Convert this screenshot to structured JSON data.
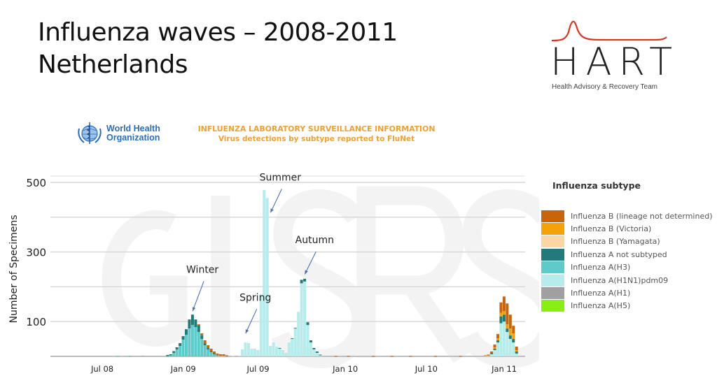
{
  "slide": {
    "title_line1": "Influenza waves – 2008-2011",
    "title_line2": "Netherlands"
  },
  "hart_logo": {
    "word": "HART",
    "tagline": "Health Advisory & Recovery Team",
    "curve_color": "#d9351f"
  },
  "who_logo": {
    "line1": "World Health",
    "line2": "Organization"
  },
  "flunet_header": {
    "title": "INFLUENZA LABORATORY SURVEILLANCE INFORMATION",
    "subtitle": "Virus detections by subtype reported to FluNet"
  },
  "watermark": "GISRS",
  "chart_data": {
    "type": "bar",
    "stacked": true,
    "title": "Virus detections by subtype reported to FluNet",
    "xlabel": "",
    "ylabel": "Number of Specimens",
    "ylim": [
      0,
      500
    ],
    "yticks": [
      100,
      300,
      500
    ],
    "gridlines": [
      0,
      100,
      200,
      300,
      400,
      500
    ],
    "grid": true,
    "x_unit": "week index (0 = mid-March 2008)",
    "x_tick_labels": [
      {
        "label": "Jul 08",
        "week": 17
      },
      {
        "label": "Jan 09",
        "week": 43
      },
      {
        "label": "Jul 09",
        "week": 67
      },
      {
        "label": "Jan 10",
        "week": 95
      },
      {
        "label": "Jul 10",
        "week": 121
      },
      {
        "label": "Jan 11",
        "week": 146
      }
    ],
    "legend_title": "Influenza subtype",
    "legend_position": "right",
    "series_order": [
      "a_h5",
      "a_h1",
      "a_h1n1pdm09",
      "a_h3",
      "a_not_subtyped",
      "b_yamagata",
      "b_victoria",
      "b_lineage_nd"
    ],
    "series": [
      {
        "key": "b_lineage_nd",
        "name": "Influenza B (lineage not determined)",
        "color": "#c8650a"
      },
      {
        "key": "b_victoria",
        "name": "Influenza B (Victoria)",
        "color": "#f5a20a"
      },
      {
        "key": "b_yamagata",
        "name": "Influenza B (Yamagata)",
        "color": "#fbd6a4"
      },
      {
        "key": "a_not_subtyped",
        "name": "Influenza A not subtyped",
        "color": "#237a7a"
      },
      {
        "key": "a_h3",
        "name": "Influenza A(H3)",
        "color": "#5ecbcb"
      },
      {
        "key": "a_h1n1pdm09",
        "name": "Influenza A(H1N1)pdm09",
        "color": "#b6ecec"
      },
      {
        "key": "a_h1",
        "name": "Influenza A(H1)",
        "color": "#a0a0a0"
      },
      {
        "key": "a_h5",
        "name": "Influenza A(H5)",
        "color": "#88ee14"
      }
    ],
    "weeks": [
      {
        "w": 22,
        "a_h3": 1
      },
      {
        "w": 26,
        "a_h3": 1
      },
      {
        "w": 30,
        "a_h3": 2
      },
      {
        "w": 38,
        "a_not_subtyped": 3,
        "a_h3": 1
      },
      {
        "w": 39,
        "a_h3": 3,
        "a_not_subtyped": 3
      },
      {
        "w": 40,
        "a_h3": 10,
        "a_not_subtyped": 5
      },
      {
        "w": 41,
        "a_h3": 20,
        "a_not_subtyped": 6
      },
      {
        "w": 42,
        "a_h3": 30,
        "a_not_subtyped": 8
      },
      {
        "w": 43,
        "a_h3": 48,
        "a_not_subtyped": 10
      },
      {
        "w": 44,
        "a_h3": 62,
        "a_not_subtyped": 16
      },
      {
        "w": 45,
        "a_h3": 80,
        "a_not_subtyped": 26
      },
      {
        "w": 46,
        "a_h3": 90,
        "a_not_subtyped": 30
      },
      {
        "w": 47,
        "a_h3": 84,
        "a_not_subtyped": 22
      },
      {
        "w": 48,
        "a_h3": 70,
        "a_not_subtyped": 20,
        "b_lineage_nd": 2
      },
      {
        "w": 49,
        "a_h3": 50,
        "a_not_subtyped": 10,
        "b_lineage_nd": 6
      },
      {
        "w": 50,
        "a_h3": 32,
        "a_not_subtyped": 6,
        "b_lineage_nd": 8
      },
      {
        "w": 51,
        "a_h3": 20,
        "a_not_subtyped": 4,
        "b_lineage_nd": 8
      },
      {
        "w": 52,
        "a_h3": 12,
        "a_not_subtyped": 2,
        "b_lineage_nd": 8
      },
      {
        "w": 53,
        "a_h3": 6,
        "a_not_subtyped": 2,
        "b_lineage_nd": 6
      },
      {
        "w": 54,
        "a_h3": 3,
        "b_lineage_nd": 5
      },
      {
        "w": 55,
        "a_h3": 2,
        "b_lineage_nd": 4
      },
      {
        "w": 56,
        "a_h3": 2,
        "b_lineage_nd": 4
      },
      {
        "w": 57,
        "b_lineage_nd": 3
      },
      {
        "w": 59,
        "a_h1n1pdm09": 2
      },
      {
        "w": 61,
        "a_h1n1pdm09": 2
      },
      {
        "w": 62,
        "a_h1n1pdm09": 20
      },
      {
        "w": 63,
        "a_h1n1pdm09": 40
      },
      {
        "w": 64,
        "a_h1n1pdm09": 38
      },
      {
        "w": 65,
        "a_h1n1pdm09": 22
      },
      {
        "w": 66,
        "a_h1n1pdm09": 22
      },
      {
        "w": 67,
        "a_h1n1pdm09": 18
      },
      {
        "w": 68,
        "a_h1n1pdm09": 178
      },
      {
        "w": 69,
        "a_h1n1pdm09": 478
      },
      {
        "w": 70,
        "a_h1n1pdm09": 455
      },
      {
        "w": 71,
        "a_h1n1pdm09": 30
      },
      {
        "w": 72,
        "a_h1n1pdm09": 40
      },
      {
        "w": 73,
        "a_h1n1pdm09": 28
      },
      {
        "w": 74,
        "a_h1n1pdm09": 22,
        "a_not_subtyped": 2
      },
      {
        "w": 75,
        "a_h1n1pdm09": 18
      },
      {
        "w": 76,
        "a_h1n1pdm09": 10
      },
      {
        "w": 77,
        "a_h1n1pdm09": 40
      },
      {
        "w": 78,
        "a_h1n1pdm09": 50,
        "a_not_subtyped": 2
      },
      {
        "w": 79,
        "a_h1n1pdm09": 80,
        "a_not_subtyped": 2
      },
      {
        "w": 80,
        "a_h1n1pdm09": 128
      },
      {
        "w": 81,
        "a_h1n1pdm09": 210,
        "a_not_subtyped": 10
      },
      {
        "w": 82,
        "a_h1n1pdm09": 215,
        "a_not_subtyped": 8
      },
      {
        "w": 83,
        "a_h1n1pdm09": 90,
        "a_not_subtyped": 8
      },
      {
        "w": 84,
        "a_h1n1pdm09": 40,
        "a_not_subtyped": 6
      },
      {
        "w": 85,
        "a_h1n1pdm09": 20,
        "a_not_subtyped": 4
      },
      {
        "w": 86,
        "a_h1n1pdm09": 10,
        "a_not_subtyped": 4
      },
      {
        "w": 87,
        "a_h1n1pdm09": 3,
        "a_not_subtyped": 2
      },
      {
        "w": 92,
        "b_lineage_nd": 1
      },
      {
        "w": 96,
        "b_lineage_nd": 1
      },
      {
        "w": 104,
        "b_lineage_nd": 1
      },
      {
        "w": 110,
        "b_lineage_nd": 1
      },
      {
        "w": 116,
        "b_lineage_nd": 1
      },
      {
        "w": 124,
        "b_lineage_nd": 1
      },
      {
        "w": 132,
        "b_lineage_nd": 1
      },
      {
        "w": 140,
        "a_h1n1pdm09": 1,
        "b_lineage_nd": 2
      },
      {
        "w": 141,
        "a_h1n1pdm09": 2,
        "b_lineage_nd": 3
      },
      {
        "w": 142,
        "a_h1n1pdm09": 6,
        "a_not_subtyped": 2,
        "b_lineage_nd": 6
      },
      {
        "w": 143,
        "a_h1n1pdm09": 18,
        "a_not_subtyped": 4,
        "b_victoria": 4,
        "b_lineage_nd": 8
      },
      {
        "w": 144,
        "a_h1n1pdm09": 40,
        "a_not_subtyped": 6,
        "b_victoria": 6,
        "b_lineage_nd": 12
      },
      {
        "w": 145,
        "a_h1n1pdm09": 95,
        "a_not_subtyped": 20,
        "b_victoria": 10,
        "b_lineage_nd": 30
      },
      {
        "w": 146,
        "a_h1n1pdm09": 100,
        "a_not_subtyped": 20,
        "b_victoria": 10,
        "b_lineage_nd": 42
      },
      {
        "w": 147,
        "a_h1n1pdm09": 70,
        "a_not_subtyped": 10,
        "b_victoria": 12,
        "b_lineage_nd": 60
      },
      {
        "w": 148,
        "a_h1n1pdm09": 50,
        "a_not_subtyped": 10,
        "b_victoria": 20,
        "b_lineage_nd": 40
      },
      {
        "w": 149,
        "a_h1n1pdm09": 40,
        "a_not_subtyped": 10,
        "b_victoria": 16,
        "b_lineage_nd": 22
      },
      {
        "w": 150,
        "a_h1n1pdm09": 8,
        "a_not_subtyped": 6,
        "b_victoria": 4,
        "b_lineage_nd": 10
      }
    ],
    "annotations": [
      {
        "label": "Winter",
        "week": 46,
        "value": 122,
        "text_value": 240
      },
      {
        "label": "Spring",
        "week": 63,
        "value": 58,
        "text_value": 160
      },
      {
        "label": "Summer",
        "week": 71,
        "value": 405,
        "text_value": 505
      },
      {
        "label": "Autumn",
        "week": 82,
        "value": 228,
        "text_value": 325
      }
    ]
  }
}
